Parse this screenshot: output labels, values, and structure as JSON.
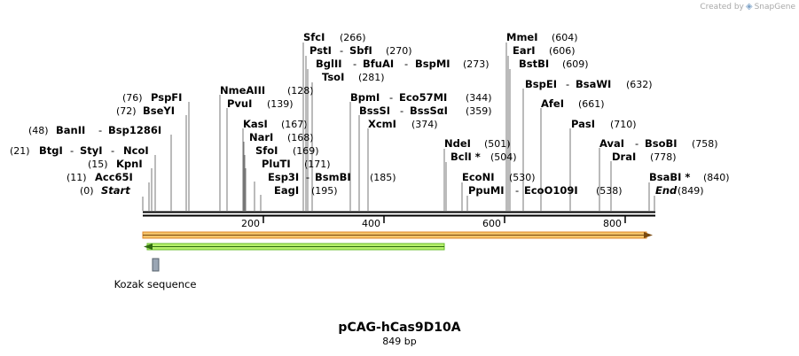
{
  "credit": {
    "prefix": "Created by",
    "brand": "SnapGene"
  },
  "map": {
    "name": "pCAG-hCas9D10A",
    "length_label": "849 bp",
    "ruler": {
      "ticks": [
        "200",
        "400",
        "600",
        "800"
      ]
    },
    "features": [
      {
        "label": "Kozak sequence"
      }
    ],
    "sites": [
      {
        "id": "start",
        "parts": [
          "Start"
        ],
        "position": "(0)",
        "italic": true
      },
      {
        "id": "acc65i",
        "parts": [
          "Acc65I"
        ],
        "position": "(11)"
      },
      {
        "id": "kpni",
        "parts": [
          "KpnI"
        ],
        "position": "(15)"
      },
      {
        "id": "btgi",
        "parts": [
          "BtgI",
          "StyI",
          "NcoI"
        ],
        "position": "(21)"
      },
      {
        "id": "banii",
        "parts": [
          "BanII",
          "Bsp1286I"
        ],
        "position": "(48)"
      },
      {
        "id": "bseyi",
        "parts": [
          "BseYI"
        ],
        "position": "(72)"
      },
      {
        "id": "pspfi",
        "parts": [
          "PspFI"
        ],
        "position": "(76)"
      },
      {
        "id": "nmeaiii",
        "parts": [
          "NmeAIII"
        ],
        "position": "(128)"
      },
      {
        "id": "pvui",
        "parts": [
          "PvuI"
        ],
        "position": "(139)"
      },
      {
        "id": "kasi",
        "parts": [
          "KasI"
        ],
        "position": "(167)"
      },
      {
        "id": "nari",
        "parts": [
          "NarI"
        ],
        "position": "(168)"
      },
      {
        "id": "sfoi",
        "parts": [
          "SfoI"
        ],
        "position": "(169)"
      },
      {
        "id": "pluti",
        "parts": [
          "PluTI"
        ],
        "position": "(171)"
      },
      {
        "id": "esp3i",
        "parts": [
          "Esp3I",
          "BsmBI"
        ],
        "position": "(185)"
      },
      {
        "id": "eagi",
        "parts": [
          "EagI"
        ],
        "position": "(195)"
      },
      {
        "id": "sfci",
        "parts": [
          "SfcI"
        ],
        "position": "(266)"
      },
      {
        "id": "psti",
        "parts": [
          "PstI",
          "SbfI"
        ],
        "position": "(270)"
      },
      {
        "id": "bglii",
        "parts": [
          "BglII",
          "BfuAI",
          "BspMI"
        ],
        "position": "(273)"
      },
      {
        "id": "tsoi",
        "parts": [
          "TsoI"
        ],
        "position": "(281)"
      },
      {
        "id": "bpmi",
        "parts": [
          "BpmI",
          "Eco57MI"
        ],
        "position": "(344)"
      },
      {
        "id": "bsssi",
        "parts": [
          "BssSI",
          "BssSαI"
        ],
        "position": "(359)"
      },
      {
        "id": "xcmi",
        "parts": [
          "XcmI"
        ],
        "position": "(374)"
      },
      {
        "id": "ndei",
        "parts": [
          "NdeI"
        ],
        "position": "(501)"
      },
      {
        "id": "bcli",
        "parts": [
          "BclI *"
        ],
        "position": "(504)"
      },
      {
        "id": "econi",
        "parts": [
          "EcoNI"
        ],
        "position": "(530)"
      },
      {
        "id": "ppumi",
        "parts": [
          "PpuMI",
          "EcoO109I"
        ],
        "position": "(538)"
      },
      {
        "id": "mmei",
        "parts": [
          "MmeI"
        ],
        "position": "(604)"
      },
      {
        "id": "eari",
        "parts": [
          "EarI"
        ],
        "position": "(606)"
      },
      {
        "id": "bstbi",
        "parts": [
          "BstBI"
        ],
        "position": "(609)"
      },
      {
        "id": "bspei",
        "parts": [
          "BspEI",
          "BsaWI"
        ],
        "position": "(632)"
      },
      {
        "id": "afei",
        "parts": [
          "AfeI"
        ],
        "position": "(661)"
      },
      {
        "id": "pasi",
        "parts": [
          "PasI"
        ],
        "position": "(710)"
      },
      {
        "id": "avai",
        "parts": [
          "AvaI",
          "BsoBI"
        ],
        "position": "(758)"
      },
      {
        "id": "drai",
        "parts": [
          "DraI"
        ],
        "position": "(778)"
      },
      {
        "id": "bsabi",
        "parts": [
          "BsaBI *"
        ],
        "position": "(840)"
      },
      {
        "id": "end",
        "parts": [
          "End"
        ],
        "position": "(849)",
        "italic": true
      }
    ]
  }
}
